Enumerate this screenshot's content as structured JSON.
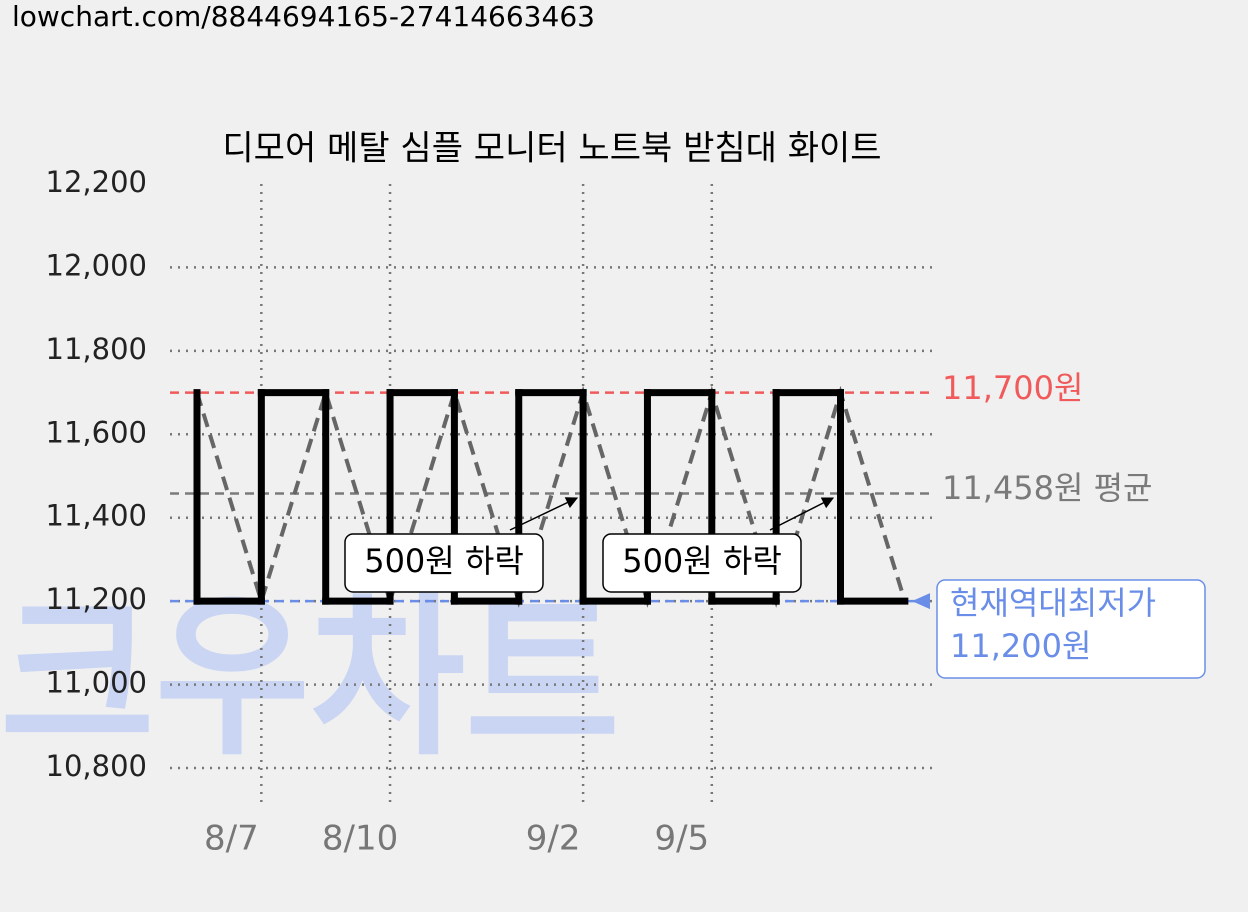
{
  "page_url": "lowchart.com/8844694165-27414663463",
  "chart_data": {
    "type": "step-line",
    "title": "디모어 메탈 심플 모니터 노트북 받침대 화이트",
    "watermark": "크우차트",
    "categories": [
      null,
      "8/7",
      null,
      "8/10",
      null,
      null,
      "9/2",
      null,
      "9/5",
      null,
      null,
      null
    ],
    "series": [
      {
        "color": "#000000",
        "values": [
          11700,
          11200,
          11700,
          11200,
          11700,
          11200,
          11700,
          11200,
          11700,
          11200,
          11700,
          11200
        ]
      }
    ],
    "trend_color": "#666666",
    "ylim": [
      10800,
      12200
    ],
    "yticks": [
      {
        "value": 10800,
        "label": "10,800"
      },
      {
        "value": 11000,
        "label": "11,000"
      },
      {
        "value": 11200,
        "label": "11,200"
      },
      {
        "value": 11400,
        "label": "11,400"
      },
      {
        "value": 11600,
        "label": "11,600"
      },
      {
        "value": 11800,
        "label": "11,800"
      },
      {
        "value": 12000,
        "label": "12,000"
      },
      {
        "value": 12200,
        "label": "12,200"
      }
    ],
    "grid": true,
    "reference_lines": [
      {
        "value": 11700,
        "label": [
          "11,700원"
        ],
        "color": "#f05a5a"
      },
      {
        "value": 11458,
        "label": [
          "11,458원 평균"
        ],
        "color": "#7a7a7a"
      },
      {
        "value": 11200,
        "label": [
          "현재역대최저가",
          "11,200원"
        ],
        "color": "#6a8ee8"
      }
    ],
    "annotations": [
      {
        "text": "500원 하락"
      },
      {
        "text": "500원 하락"
      }
    ]
  }
}
